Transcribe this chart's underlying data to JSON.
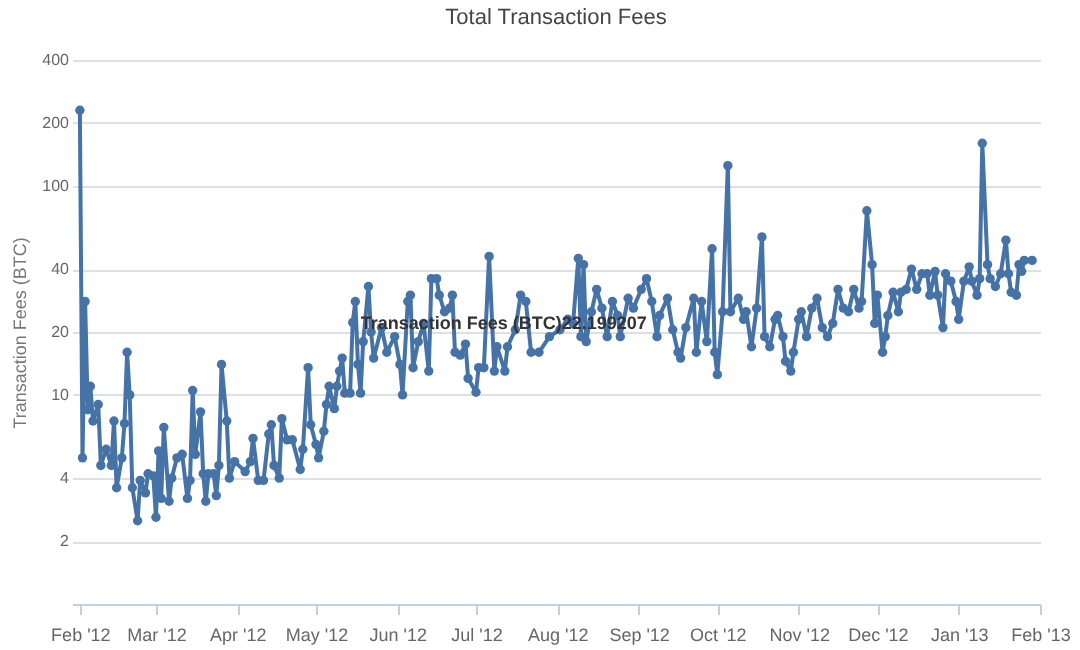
{
  "chart_data": {
    "type": "line",
    "title": "Total Transaction Fees",
    "ylabel": "Transaction Fees (BTC)",
    "log": "y",
    "grid": "y",
    "marker": "circle",
    "line_style": "solid",
    "ylim": [
      1,
      400
    ],
    "yticks": [
      2,
      4,
      10,
      20,
      40,
      100,
      200,
      400
    ],
    "xlim": [
      "2012-01-29",
      "2013-02-01"
    ],
    "xticks": [
      {
        "value": "2012-02-01",
        "label": "Feb '12"
      },
      {
        "value": "2012-03-01",
        "label": "Mar '12"
      },
      {
        "value": "2012-04-01",
        "label": "Apr '12"
      },
      {
        "value": "2012-05-01",
        "label": "May '12"
      },
      {
        "value": "2012-06-01",
        "label": "Jun '12"
      },
      {
        "value": "2012-07-01",
        "label": "Jul '12"
      },
      {
        "value": "2012-08-01",
        "label": "Aug '12"
      },
      {
        "value": "2012-09-01",
        "label": "Sep '12"
      },
      {
        "value": "2012-10-01",
        "label": "Oct '12"
      },
      {
        "value": "2012-11-01",
        "label": "Nov '12"
      },
      {
        "value": "2012-12-01",
        "label": "Dec '12"
      },
      {
        "value": "2013-01-01",
        "label": "Jan '13"
      },
      {
        "value": "2013-02-01",
        "label": "Feb '13"
      }
    ],
    "annotations": [
      {
        "text": "Transaction Fees (BTC)22.199207",
        "x": "2012-05-15",
        "y": 22.199207
      }
    ],
    "x": [
      "2012-02-01",
      "2012-02-02",
      "2012-02-03",
      "2012-02-04",
      "2012-02-05",
      "2012-02-06",
      "2012-02-08",
      "2012-02-09",
      "2012-02-11",
      "2012-02-13",
      "2012-02-14",
      "2012-02-15",
      "2012-02-17",
      "2012-02-18",
      "2012-02-19",
      "2012-02-20",
      "2012-02-21",
      "2012-02-23",
      "2012-02-24",
      "2012-02-26",
      "2012-02-27",
      "2012-02-29",
      "2012-03-01",
      "2012-03-02",
      "2012-03-03",
      "2012-03-04",
      "2012-03-06",
      "2012-03-07",
      "2012-03-09",
      "2012-03-11",
      "2012-03-13",
      "2012-03-14",
      "2012-03-15",
      "2012-03-16",
      "2012-03-18",
      "2012-03-19",
      "2012-03-20",
      "2012-03-21",
      "2012-03-23",
      "2012-03-24",
      "2012-03-25",
      "2012-03-26",
      "2012-03-28",
      "2012-03-29",
      "2012-03-31",
      "2012-04-04",
      "2012-04-06",
      "2012-04-07",
      "2012-04-09",
      "2012-04-11",
      "2012-04-13",
      "2012-04-14",
      "2012-04-15",
      "2012-04-17",
      "2012-04-18",
      "2012-04-20",
      "2012-04-22",
      "2012-04-25",
      "2012-04-26",
      "2012-04-28",
      "2012-04-29",
      "2012-05-01",
      "2012-05-02",
      "2012-05-04",
      "2012-05-05",
      "2012-05-06",
      "2012-05-08",
      "2012-05-09",
      "2012-05-10",
      "2012-05-11",
      "2012-05-12",
      "2012-05-14",
      "2012-05-15",
      "2012-05-16",
      "2012-05-17",
      "2012-05-18",
      "2012-05-19",
      "2012-05-21",
      "2012-05-22",
      "2012-05-23",
      "2012-05-26",
      "2012-05-28",
      "2012-05-31",
      "2012-06-02",
      "2012-06-03",
      "2012-06-05",
      "2012-06-06",
      "2012-06-07",
      "2012-06-09",
      "2012-06-11",
      "2012-06-13",
      "2012-06-14",
      "2012-06-16",
      "2012-06-17",
      "2012-06-19",
      "2012-06-21",
      "2012-06-22",
      "2012-06-23",
      "2012-06-25",
      "2012-06-27",
      "2012-06-28",
      "2012-07-01",
      "2012-07-02",
      "2012-07-04",
      "2012-07-06",
      "2012-07-08",
      "2012-07-09",
      "2012-07-12",
      "2012-07-13",
      "2012-07-16",
      "2012-07-18",
      "2012-07-20",
      "2012-07-22",
      "2012-07-25",
      "2012-07-29",
      "2012-08-02",
      "2012-08-05",
      "2012-08-07",
      "2012-08-09",
      "2012-08-10",
      "2012-08-11",
      "2012-08-12",
      "2012-08-14",
      "2012-08-16",
      "2012-08-18",
      "2012-08-20",
      "2012-08-22",
      "2012-08-24",
      "2012-08-25",
      "2012-08-28",
      "2012-08-30",
      "2012-09-02",
      "2012-09-04",
      "2012-09-06",
      "2012-09-08",
      "2012-09-09",
      "2012-09-12",
      "2012-09-14",
      "2012-09-16",
      "2012-09-17",
      "2012-09-19",
      "2012-09-22",
      "2012-09-23",
      "2012-09-25",
      "2012-09-27",
      "2012-09-29",
      "2012-09-30",
      "2012-10-01",
      "2012-10-03",
      "2012-10-05",
      "2012-10-06",
      "2012-10-09",
      "2012-10-11",
      "2012-10-12",
      "2012-10-14",
      "2012-10-16",
      "2012-10-18",
      "2012-10-19",
      "2012-10-21",
      "2012-10-23",
      "2012-10-24",
      "2012-10-26",
      "2012-10-27",
      "2012-10-29",
      "2012-10-30",
      "2012-11-01",
      "2012-11-02",
      "2012-11-04",
      "2012-11-06",
      "2012-11-08",
      "2012-11-10",
      "2012-11-12",
      "2012-11-14",
      "2012-11-16",
      "2012-11-18",
      "2012-11-20",
      "2012-11-22",
      "2012-11-24",
      "2012-11-25",
      "2012-11-27",
      "2012-11-29",
      "2012-11-30",
      "2012-12-01",
      "2012-12-03",
      "2012-12-04",
      "2012-12-05",
      "2012-12-07",
      "2012-12-09",
      "2012-12-10",
      "2012-12-12",
      "2012-12-14",
      "2012-12-16",
      "2012-12-18",
      "2012-12-20",
      "2012-12-21",
      "2012-12-23",
      "2012-12-24",
      "2012-12-26",
      "2012-12-27",
      "2012-12-29",
      "2012-12-31",
      "2013-01-01",
      "2013-01-03",
      "2013-01-05",
      "2013-01-06",
      "2013-01-08",
      "2013-01-09",
      "2013-01-10",
      "2013-01-12",
      "2013-01-13",
      "2013-01-15",
      "2013-01-17",
      "2013-01-19",
      "2013-01-20",
      "2013-01-21",
      "2013-01-23",
      "2013-01-24",
      "2013-01-25",
      "2013-01-26",
      "2013-01-29"
    ],
    "series": [
      {
        "color": "#4572a7",
        "values": [
          230,
          5,
          28,
          8.5,
          11,
          7.5,
          9,
          4.6,
          5.5,
          4.6,
          7.5,
          3.6,
          5,
          7.3,
          16,
          10,
          3.6,
          2.5,
          3.9,
          3.4,
          4.2,
          4.1,
          2.6,
          5.4,
          3.2,
          7,
          3.1,
          4,
          5,
          5.2,
          3.2,
          3.9,
          10.5,
          5.2,
          8.3,
          4.2,
          3.1,
          4.2,
          4.2,
          3.3,
          4.6,
          14,
          7.5,
          4,
          4.8,
          4.3,
          4.8,
          6.2,
          3.9,
          3.9,
          6.5,
          7.2,
          4.6,
          4,
          7.7,
          6.1,
          6.1,
          4.4,
          5.5,
          13.5,
          7.2,
          5.8,
          5,
          6.7,
          9,
          11,
          8.6,
          11,
          13,
          15,
          10.2,
          10.2,
          22.2,
          28,
          14,
          10.2,
          18,
          33,
          20,
          15,
          21,
          16,
          19,
          14,
          10,
          28,
          30,
          13.5,
          18,
          22,
          13,
          36,
          36,
          30,
          25,
          26,
          30,
          16,
          15.5,
          17.5,
          12,
          10.3,
          13.5,
          13.5,
          46,
          13,
          17,
          13,
          17,
          20.5,
          30,
          28,
          16,
          16,
          19,
          20.5,
          23,
          22,
          45,
          19,
          42,
          18,
          25,
          32,
          26,
          19,
          28,
          24,
          19,
          29,
          26,
          32,
          36,
          28,
          19,
          24,
          29,
          20.5,
          16,
          15,
          21,
          29,
          16,
          28,
          18,
          50,
          16,
          12.5,
          25,
          125,
          25,
          29,
          23,
          25,
          17,
          26,
          57,
          19,
          17,
          23,
          24,
          19,
          14.5,
          13,
          16,
          23,
          25,
          19,
          26,
          29,
          21,
          19,
          22,
          32,
          26,
          25,
          32,
          26,
          28,
          76,
          42,
          22,
          30,
          16,
          19,
          24,
          31,
          25,
          31,
          32,
          40,
          32,
          38,
          38,
          30,
          39,
          30,
          21,
          38,
          35,
          28,
          23,
          35,
          41,
          35,
          30,
          36,
          160,
          42,
          36,
          33,
          38,
          55,
          38,
          31,
          30,
          42,
          39,
          44,
          44
        ]
      }
    ]
  }
}
